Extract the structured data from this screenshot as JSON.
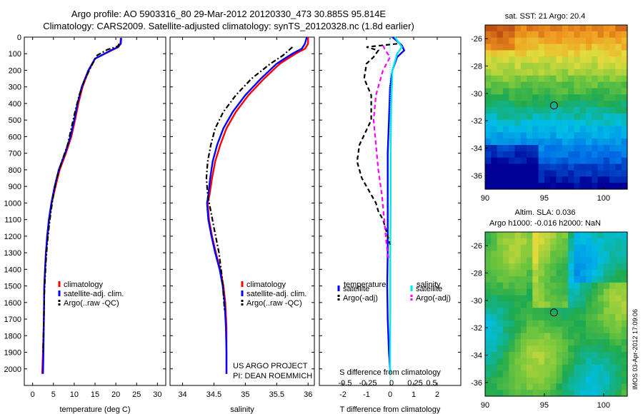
{
  "header": {
    "line1": "Argo profile: AO 5903316_80 29-Mar-2012 20120330_473 30.885S 95.814E",
    "line2": "Climatology: CARS2009. Satellite-adjusted climatology: synTS_20120328.nc (1.8d earlier)"
  },
  "footer_stamp": "IMOS 03-Apr-2012 17:09:06",
  "colors": {
    "climatology": "#ff0000",
    "satellite": "#0000ff",
    "argo": "#000000",
    "satellite_s": "#00e5ee",
    "argo_s": "#ff00ff"
  },
  "chart_data": [
    {
      "type": "line",
      "name": "temperature-panel",
      "xlabel": "temperature (deg C)",
      "xlim": [
        -2,
        32
      ],
      "ylim": [
        2100,
        0
      ],
      "xticks": [
        "0",
        "5",
        "10",
        "15",
        "20",
        "25",
        "30"
      ],
      "xtick_values": [
        0,
        5,
        10,
        15,
        20,
        25,
        30
      ],
      "yticks": [
        "0",
        "100",
        "200",
        "300",
        "400",
        "500",
        "600",
        "700",
        "800",
        "900",
        "1000",
        "1100",
        "1200",
        "1300",
        "1400",
        "1500",
        "1600",
        "1700",
        "1800",
        "1900",
        "2000"
      ],
      "ytick_values": [
        0,
        100,
        200,
        300,
        400,
        500,
        600,
        700,
        800,
        900,
        1000,
        1100,
        1200,
        1300,
        1400,
        1500,
        1600,
        1700,
        1800,
        1900,
        2000
      ],
      "legend": [
        "climatology",
        "satellite-adj. clim.",
        "Argo(..raw -QC)"
      ],
      "legend_position": "lower-center",
      "series": [
        {
          "name": "climatology",
          "style": "solid",
          "color": "#ff0000",
          "x": [
            21.2,
            21.1,
            20.6,
            19.0,
            15.0,
            13.5,
            12.0,
            11.0,
            10.2,
            9.3,
            8.0,
            6.5,
            5.5,
            4.6,
            4.0,
            3.6,
            3.2,
            3.0,
            2.8,
            2.7,
            2.5,
            2.3
          ],
          "y": [
            5,
            40,
            60,
            80,
            130,
            200,
            300,
            400,
            500,
            600,
            700,
            800,
            900,
            1000,
            1100,
            1200,
            1300,
            1400,
            1500,
            1700,
            1900,
            2030
          ]
        },
        {
          "name": "satellite-adj. clim.",
          "style": "solid",
          "color": "#0000ff",
          "x": [
            21.3,
            21.2,
            20.5,
            18.8,
            15.0,
            13.4,
            11.8,
            10.8,
            10.0,
            9.1,
            7.8,
            6.3,
            5.3,
            4.5,
            3.9,
            3.5,
            3.2,
            3.0,
            2.8,
            2.7,
            2.6,
            2.5
          ],
          "y": [
            5,
            40,
            60,
            80,
            130,
            200,
            300,
            400,
            500,
            600,
            700,
            800,
            900,
            1000,
            1100,
            1200,
            1300,
            1400,
            1500,
            1700,
            1900,
            2030
          ]
        },
        {
          "name": "Argo(..raw -QC)",
          "style": "dashdot",
          "color": "#000000",
          "x": [
            20.8,
            20.5,
            18.0,
            15.5,
            14.0,
            12.5,
            11.2,
            10.2,
            9.3,
            8.4,
            7.0,
            5.8,
            5.0,
            4.4,
            3.9,
            3.5,
            3.2,
            3.0,
            2.8,
            2.7,
            2.5
          ],
          "y": [
            40,
            55,
            75,
            110,
            180,
            260,
            350,
            450,
            550,
            650,
            750,
            850,
            950,
            1050,
            1150,
            1250,
            1350,
            1450,
            1550,
            1700,
            1900
          ]
        }
      ]
    },
    {
      "type": "line",
      "name": "salinity-panel",
      "xlabel": "salinity",
      "xlim": [
        33.8,
        36.1
      ],
      "ylim": [
        2100,
        0
      ],
      "xticks": [
        "34",
        "34.5",
        "35",
        "35.5",
        "36"
      ],
      "xtick_values": [
        34,
        34.5,
        35,
        35.5,
        36
      ],
      "legend": [
        "climatology",
        "satellite-adj. clim.",
        "Argo(..raw -QC)"
      ],
      "legend_position": "lower-right",
      "annotation": [
        "US ARGO PROJECT",
        "PI: DEAN ROEMMICH"
      ],
      "series": [
        {
          "name": "climatology",
          "style": "solid",
          "color": "#ff0000",
          "x": [
            36.0,
            36.0,
            35.95,
            35.8,
            35.55,
            35.3,
            35.05,
            34.85,
            34.7,
            34.6,
            34.52,
            34.47,
            34.43,
            34.4,
            34.42,
            34.47,
            34.53,
            34.6,
            34.65,
            34.68,
            34.7,
            34.7,
            34.7
          ],
          "y": [
            0,
            40,
            70,
            100,
            160,
            250,
            350,
            450,
            550,
            650,
            750,
            850,
            950,
            1000,
            1100,
            1200,
            1300,
            1400,
            1500,
            1600,
            1750,
            1900,
            2030
          ]
        },
        {
          "name": "satellite-adj. clim.",
          "style": "solid",
          "color": "#0000ff",
          "x": [
            35.98,
            35.95,
            35.9,
            35.75,
            35.5,
            35.25,
            35.0,
            34.8,
            34.65,
            34.55,
            34.48,
            34.44,
            34.41,
            34.39,
            34.41,
            34.46,
            34.52,
            34.59,
            34.64,
            34.67,
            34.69,
            34.7,
            34.7
          ],
          "y": [
            0,
            40,
            70,
            100,
            160,
            250,
            350,
            450,
            550,
            650,
            750,
            850,
            950,
            1000,
            1100,
            1200,
            1300,
            1400,
            1500,
            1600,
            1750,
            1900,
            2030
          ]
        },
        {
          "name": "Argo(..raw -QC)",
          "style": "dashdot",
          "color": "#000000",
          "x": [
            35.75,
            35.6,
            35.4,
            35.1,
            34.85,
            34.65,
            34.52,
            34.45,
            34.4,
            34.38,
            34.4,
            34.45,
            34.5,
            34.58,
            34.63,
            34.67
          ],
          "y": [
            60,
            110,
            160,
            250,
            350,
            450,
            550,
            650,
            750,
            850,
            950,
            1050,
            1150,
            1300,
            1450,
            1650
          ]
        }
      ]
    },
    {
      "type": "line",
      "name": "difference-panel",
      "xlabel": "T difference from climatology",
      "xlabel_top": "S difference from climatology",
      "xlim": [
        -3,
        3
      ],
      "ylim": [
        2100,
        0
      ],
      "xticks": [
        "-2",
        "-1",
        "0",
        "1",
        "2"
      ],
      "xtick_values": [
        -2,
        -1,
        0,
        1,
        2
      ],
      "s_xticks": [
        "-0.5",
        "-0.25",
        "0",
        "0.25",
        "0.5"
      ],
      "legend": [
        "temperature",
        "satellite",
        "Argo(-adj)",
        "salinity",
        "satellite",
        "Argo(-adj)"
      ],
      "legend_position": "lower-center",
      "series": [
        {
          "name": "T satellite",
          "style": "solid",
          "color": "#0000ff",
          "x": [
            0.1,
            0.5,
            0.6,
            0.3,
            0.1,
            0.0,
            -0.05,
            -0.1,
            -0.1,
            -0.1,
            -0.1,
            -0.12,
            -0.1,
            -0.05,
            0.0,
            0.0
          ],
          "y": [
            0,
            50,
            80,
            120,
            200,
            300,
            500,
            700,
            900,
            1100,
            1300,
            1500,
            1700,
            1900,
            2000,
            2030
          ]
        },
        {
          "name": "S satellite",
          "style": "solid",
          "color": "#00e5ee",
          "x": [
            0.2,
            0.5,
            0.3,
            0.1,
            0.05,
            0.02,
            0.02,
            0.01,
            0.01,
            0.0,
            0.0
          ],
          "y": [
            0,
            60,
            100,
            200,
            400,
            700,
            1000,
            1300,
            1600,
            1900,
            2030
          ]
        },
        {
          "name": "T Argo(-adj)",
          "style": "dashed",
          "color": "#000000",
          "x": [
            0.3,
            -1.0,
            -0.5,
            -0.7,
            -1.0,
            -1.1,
            -0.8,
            -0.8,
            -1.3,
            -1.4,
            -1.2,
            -0.8,
            -0.6,
            -0.5,
            -0.3,
            0.0
          ],
          "y": [
            40,
            60,
            80,
            120,
            160,
            250,
            350,
            500,
            650,
            750,
            850,
            950,
            1000,
            1050,
            1100,
            1250
          ]
        },
        {
          "name": "S Argo(-adj)",
          "style": "dashed",
          "color": "#ff00ff",
          "x": [
            -0.3,
            -0.2,
            0.0,
            -0.3,
            -0.6,
            -0.7,
            -0.6,
            -0.5,
            -0.35,
            -0.25,
            -0.15,
            -0.05
          ],
          "y": [
            50,
            80,
            120,
            200,
            350,
            500,
            650,
            800,
            950,
            1100,
            1250,
            1350
          ]
        }
      ]
    },
    {
      "type": "heatmap",
      "name": "sst-map",
      "title": "sat. SST: 21  Argo: 20.4",
      "xticks": [
        "90",
        "95",
        "100"
      ],
      "yticks": [
        "-26",
        "-28",
        "-30",
        "-32",
        "-34",
        "-36"
      ],
      "xlim": [
        90,
        102
      ],
      "ylim": [
        -37,
        -25
      ],
      "marker": {
        "lon": 95.814,
        "lat": -30.885
      }
    },
    {
      "type": "heatmap",
      "name": "sla-map",
      "title": "Altim. SLA: 0.036",
      "subtitle": "Argo h1000: -0.016 h2000: NaN",
      "xticks": [
        "90",
        "95",
        "100"
      ],
      "yticks": [
        "-26",
        "-28",
        "-30",
        "-32",
        "-34",
        "-36"
      ],
      "xlim": [
        90,
        102
      ],
      "ylim": [
        -37,
        -25
      ],
      "marker": {
        "lon": 95.814,
        "lat": -30.885
      }
    }
  ]
}
